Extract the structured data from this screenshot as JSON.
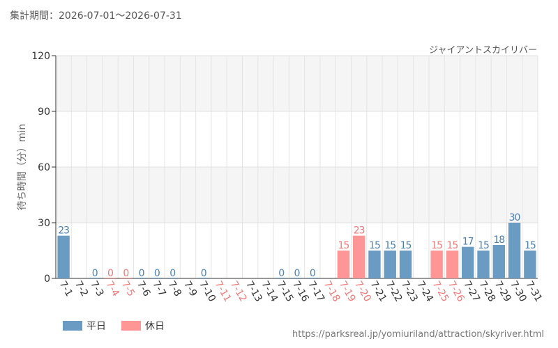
{
  "header": {
    "period": "集計期間：2026-07-01〜2026-07-31"
  },
  "attraction_name": "ジャイアントスカイリバー",
  "source_url": "https://parksreal.jp/yomiuriland/attraction/skyriver.html",
  "colors": {
    "weekday": "#6a9bc3",
    "holiday": "#ff9696",
    "weekday_text": "#4a7fae",
    "holiday_text": "#f07878"
  },
  "chart_data": {
    "type": "bar",
    "ylabel": "待ち時間（分）min",
    "ylim": [
      0,
      120
    ],
    "yticks": [
      0,
      30,
      60,
      90,
      120
    ],
    "categories": [
      "7-1",
      "7-2",
      "7-3",
      "7-4",
      "7-5",
      "7-6",
      "7-7",
      "7-8",
      "7-9",
      "7-10",
      "7-11",
      "7-12",
      "7-13",
      "7-14",
      "7-15",
      "7-16",
      "7-17",
      "7-18",
      "7-19",
      "7-20",
      "7-21",
      "7-22",
      "7-23",
      "7-24",
      "7-25",
      "7-26",
      "7-27",
      "7-28",
      "7-29",
      "7-30",
      "7-31"
    ],
    "values": [
      23,
      null,
      0,
      0,
      0,
      0,
      0,
      0,
      null,
      0,
      null,
      null,
      null,
      null,
      0,
      0,
      0,
      null,
      15,
      23,
      15,
      15,
      15,
      null,
      15,
      15,
      17,
      15,
      18,
      30,
      15
    ],
    "day_type": [
      "weekday",
      "weekday",
      "weekday",
      "holiday",
      "holiday",
      "weekday",
      "weekday",
      "weekday",
      "weekday",
      "weekday",
      "holiday",
      "holiday",
      "weekday",
      "weekday",
      "weekday",
      "weekday",
      "weekday",
      "holiday",
      "holiday",
      "holiday",
      "weekday",
      "weekday",
      "weekday",
      "weekday",
      "holiday",
      "holiday",
      "weekday",
      "weekday",
      "weekday",
      "weekday",
      "weekday"
    ],
    "legend": [
      {
        "key": "weekday",
        "label": "平日"
      },
      {
        "key": "holiday",
        "label": "休日"
      }
    ],
    "legend_position": "bottom-left",
    "grid": true
  }
}
